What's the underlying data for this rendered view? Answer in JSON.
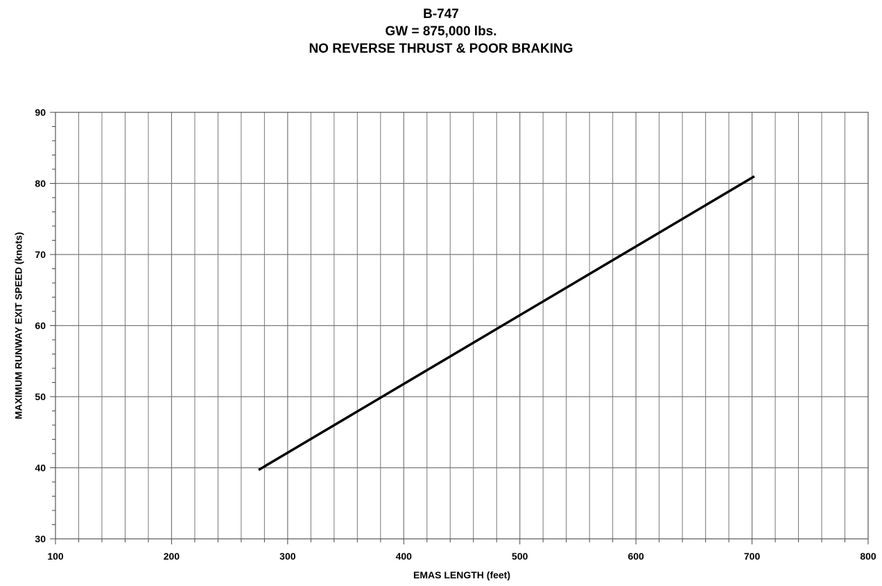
{
  "chart_data": {
    "type": "line",
    "title": "B-747",
    "subtitle": "GW = 875,000 lbs.",
    "subtitle2": "NO REVERSE THRUST & POOR BRAKING",
    "xlabel": "EMAS LENGTH (feet)",
    "ylabel": "MAXIMUM RUNWAY EXIT SPEED (knots)",
    "xlim": [
      100,
      800
    ],
    "ylim": [
      30,
      90
    ],
    "x_major_ticks": [
      100,
      200,
      300,
      400,
      500,
      600,
      700,
      800
    ],
    "x_minor_step": 20,
    "y_major_ticks": [
      30,
      40,
      50,
      60,
      70,
      80,
      90
    ],
    "y_minor_step": 2,
    "grid": true,
    "legend": "none",
    "series": [
      {
        "x": [
          275,
          702
        ],
        "y": [
          39.7,
          81
        ],
        "color": "#000000"
      }
    ]
  }
}
